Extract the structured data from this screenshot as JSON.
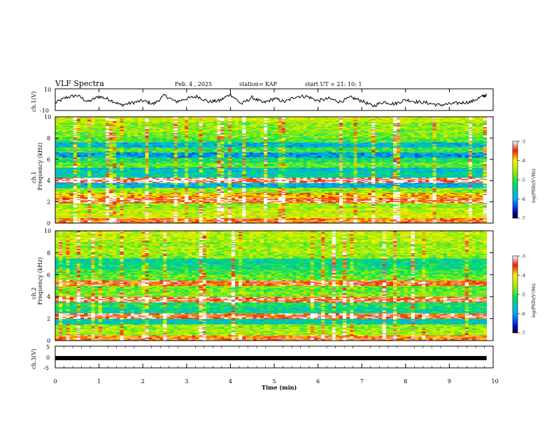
{
  "header": {
    "title": "VLF Spectra",
    "date": "Feb. 4 , 2025",
    "station": "station= KAP",
    "start": "start UT =  21: 10: 1"
  },
  "chart_data": [
    {
      "type": "line",
      "id": "ch1_timeseries",
      "ylabel": "ch.1(V)",
      "ylim": [
        -10,
        10
      ],
      "yticks": [
        "10",
        "-10"
      ],
      "xlim": [
        0,
        9.85
      ],
      "x": [
        0.0,
        0.25,
        0.5,
        0.75,
        1.0,
        1.25,
        1.5,
        1.75,
        2.0,
        2.25,
        2.5,
        2.75,
        3.0,
        3.25,
        3.5,
        3.75,
        4.0,
        4.25,
        4.5,
        4.75,
        5.0,
        5.25,
        5.5,
        5.75,
        6.0,
        6.25,
        6.5,
        6.75,
        7.0,
        7.25,
        7.5,
        7.75,
        8.0,
        8.25,
        8.5,
        8.75,
        9.0,
        9.25,
        9.5,
        9.75,
        9.85
      ],
      "values": [
        -3,
        2,
        4,
        -2,
        3,
        0,
        -5,
        -3,
        -1,
        -4,
        4,
        -2,
        1,
        3,
        -2,
        -1,
        5,
        -4,
        2,
        -3,
        1,
        -2,
        3,
        3,
        -1,
        1,
        -2,
        2,
        -1,
        -6,
        -2,
        -4,
        0,
        -2,
        -3,
        -5,
        -4,
        -3,
        -2,
        3,
        4
      ]
    },
    {
      "type": "heatmap",
      "id": "ch1_spectrogram",
      "ylabel": "ch.1\nFrequency (kHz)",
      "yticks": [
        "0",
        "2",
        "4",
        "6",
        "8",
        "10"
      ],
      "ylim": [
        0,
        10
      ],
      "xlim": [
        0,
        9.85
      ],
      "colorbar": {
        "label": "log(PSD)(V²/Hz)",
        "ticks": [
          "-3",
          "-4",
          "-5",
          "-6",
          "-7"
        ],
        "range": [
          -7,
          -3
        ]
      },
      "bands": [
        {
          "f": 0.1,
          "level": -3.6
        },
        {
          "f": 0.6,
          "level": -4.3
        },
        {
          "f": 1.1,
          "level": -4.4
        },
        {
          "f": 1.6,
          "level": -4.6
        },
        {
          "f": 2.0,
          "level": -3.4
        },
        {
          "f": 2.3,
          "level": -3.9
        },
        {
          "f": 2.8,
          "level": -4.6
        },
        {
          "f": 3.3,
          "level": -5.8
        },
        {
          "f": 3.7,
          "level": -3.2
        },
        {
          "f": 4.0,
          "level": -5.5
        },
        {
          "f": 4.5,
          "level": -5.7
        },
        {
          "f": 5.0,
          "level": -4.8
        },
        {
          "f": 5.5,
          "level": -5.2
        },
        {
          "f": 6.0,
          "level": -6.0
        },
        {
          "f": 6.5,
          "level": -5.0
        },
        {
          "f": 7.0,
          "level": -5.8
        },
        {
          "f": 7.6,
          "level": -4.9
        },
        {
          "f": 8.2,
          "level": -4.7
        },
        {
          "f": 8.8,
          "level": -4.6
        },
        {
          "f": 9.4,
          "level": -4.6
        },
        {
          "f": 9.8,
          "level": -4.3
        }
      ]
    },
    {
      "type": "heatmap",
      "id": "ch2_spectrogram",
      "ylabel": "ch.2\nFrequency (kHz)",
      "yticks": [
        "0",
        "2",
        "4",
        "6",
        "8",
        "10"
      ],
      "ylim": [
        0,
        10
      ],
      "xlim": [
        0,
        9.85
      ],
      "colorbar": {
        "label": "log(PSD)(V²/Hz)",
        "ticks": [
          "-3",
          "-4",
          "-5",
          "-6",
          "-7"
        ],
        "range": [
          -7,
          -3
        ]
      },
      "bands": [
        {
          "f": 0.1,
          "level": -3.6
        },
        {
          "f": 0.5,
          "level": -4.5
        },
        {
          "f": 1.0,
          "level": -4.6
        },
        {
          "f": 1.5,
          "level": -5.6
        },
        {
          "f": 1.9,
          "level": -3.4
        },
        {
          "f": 2.4,
          "level": -5.4
        },
        {
          "f": 2.9,
          "level": -5.2
        },
        {
          "f": 3.4,
          "level": -3.4
        },
        {
          "f": 3.9,
          "level": -4.7
        },
        {
          "f": 4.4,
          "level": -4.8
        },
        {
          "f": 4.9,
          "level": -3.5
        },
        {
          "f": 5.4,
          "level": -4.8
        },
        {
          "f": 6.0,
          "level": -5.0
        },
        {
          "f": 6.5,
          "level": -5.3
        },
        {
          "f": 7.0,
          "level": -5.4
        },
        {
          "f": 7.6,
          "level": -4.6
        },
        {
          "f": 8.2,
          "level": -4.5
        },
        {
          "f": 8.8,
          "level": -4.6
        },
        {
          "f": 9.3,
          "level": -4.4
        },
        {
          "f": 9.8,
          "level": -4.4
        }
      ]
    },
    {
      "type": "line",
      "id": "ch3_timeseries",
      "ylabel": "ch.3(V)",
      "ylim": [
        -5,
        5
      ],
      "yticks": [
        "5",
        "0",
        "-5"
      ],
      "xlim": [
        0,
        9.85
      ],
      "xlabel": "Time (min)",
      "xticks": [
        "0",
        "1",
        "2",
        "3",
        "4",
        "5",
        "6",
        "7",
        "8",
        "9",
        "10"
      ],
      "x": [
        0,
        9.85
      ],
      "values": [
        -0.5,
        -0.5
      ]
    }
  ]
}
